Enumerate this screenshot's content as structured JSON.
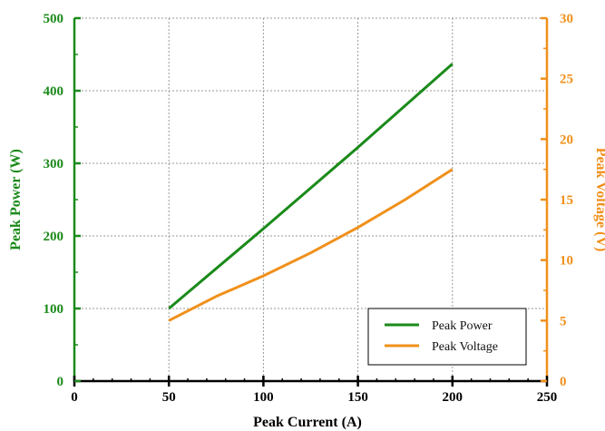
{
  "chart_data": {
    "type": "line",
    "title": "",
    "xlabel": "Peak Current (A)",
    "ylabel_left": "Peak Power (W)",
    "ylabel_right": "Peak Voltage (V)",
    "xlim": [
      0,
      250
    ],
    "ylim_left": [
      0,
      500
    ],
    "ylim_right": [
      0,
      30
    ],
    "x_ticks": [
      "0",
      "50",
      "100",
      "150",
      "200",
      "250"
    ],
    "y_left_ticks": [
      "0",
      "100",
      "200",
      "300",
      "400",
      "500"
    ],
    "y_right_ticks": [
      "0",
      "5",
      "10",
      "15",
      "20",
      "25",
      "30"
    ],
    "grid": true,
    "legend_position": "bottom-right",
    "colors": {
      "power": "#1a8a1a",
      "voltage": "#f0901a",
      "axis_x": "#000000"
    },
    "series": [
      {
        "name": "Peak Power",
        "axis": "left",
        "color": "#1a8a1a",
        "x": [
          50,
          100,
          150,
          200
        ],
        "y": [
          100,
          210,
          322,
          437
        ]
      },
      {
        "name": "Peak Voltage",
        "axis": "right",
        "color": "#f0901a",
        "x": [
          50,
          75,
          100,
          125,
          150,
          175,
          200
        ],
        "y": [
          5.0,
          7.0,
          8.7,
          10.6,
          12.7,
          15.0,
          17.5
        ]
      }
    ]
  }
}
